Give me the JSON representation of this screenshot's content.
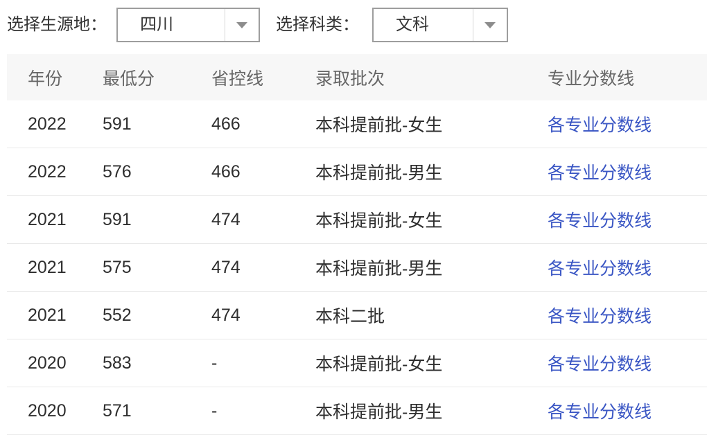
{
  "filters": {
    "origin": {
      "label": "选择生源地：",
      "value": "四川"
    },
    "category": {
      "label": "选择科类：",
      "value": "文科"
    }
  },
  "table": {
    "headers": [
      "年份",
      "最低分",
      "省控线",
      "录取批次",
      "专业分数线"
    ],
    "rows": [
      {
        "year": "2022",
        "min_score": "591",
        "control_line": "466",
        "batch": "本科提前批-女生",
        "link": "各专业分数线"
      },
      {
        "year": "2022",
        "min_score": "576",
        "control_line": "466",
        "batch": "本科提前批-男生",
        "link": "各专业分数线"
      },
      {
        "year": "2021",
        "min_score": "591",
        "control_line": "474",
        "batch": "本科提前批-女生",
        "link": "各专业分数线"
      },
      {
        "year": "2021",
        "min_score": "575",
        "control_line": "474",
        "batch": "本科提前批-男生",
        "link": "各专业分数线"
      },
      {
        "year": "2021",
        "min_score": "552",
        "control_line": "474",
        "batch": "本科二批",
        "link": "各专业分数线"
      },
      {
        "year": "2020",
        "min_score": "583",
        "control_line": "-",
        "batch": "本科提前批-女生",
        "link": "各专业分数线"
      },
      {
        "year": "2020",
        "min_score": "571",
        "control_line": "-",
        "batch": "本科提前批-男生",
        "link": "各专业分数线"
      }
    ]
  },
  "colors": {
    "link_blue": "#3a56c4",
    "header_bg": "#f7f7f7",
    "header_text": "#666666",
    "body_text": "#2e2e2e",
    "divider": "#e9e9e9",
    "select_border": "#9e9e9e",
    "select_divider": "#d6d6d6",
    "arrow_gray": "#8c8c8c",
    "label_text": "#333333"
  }
}
